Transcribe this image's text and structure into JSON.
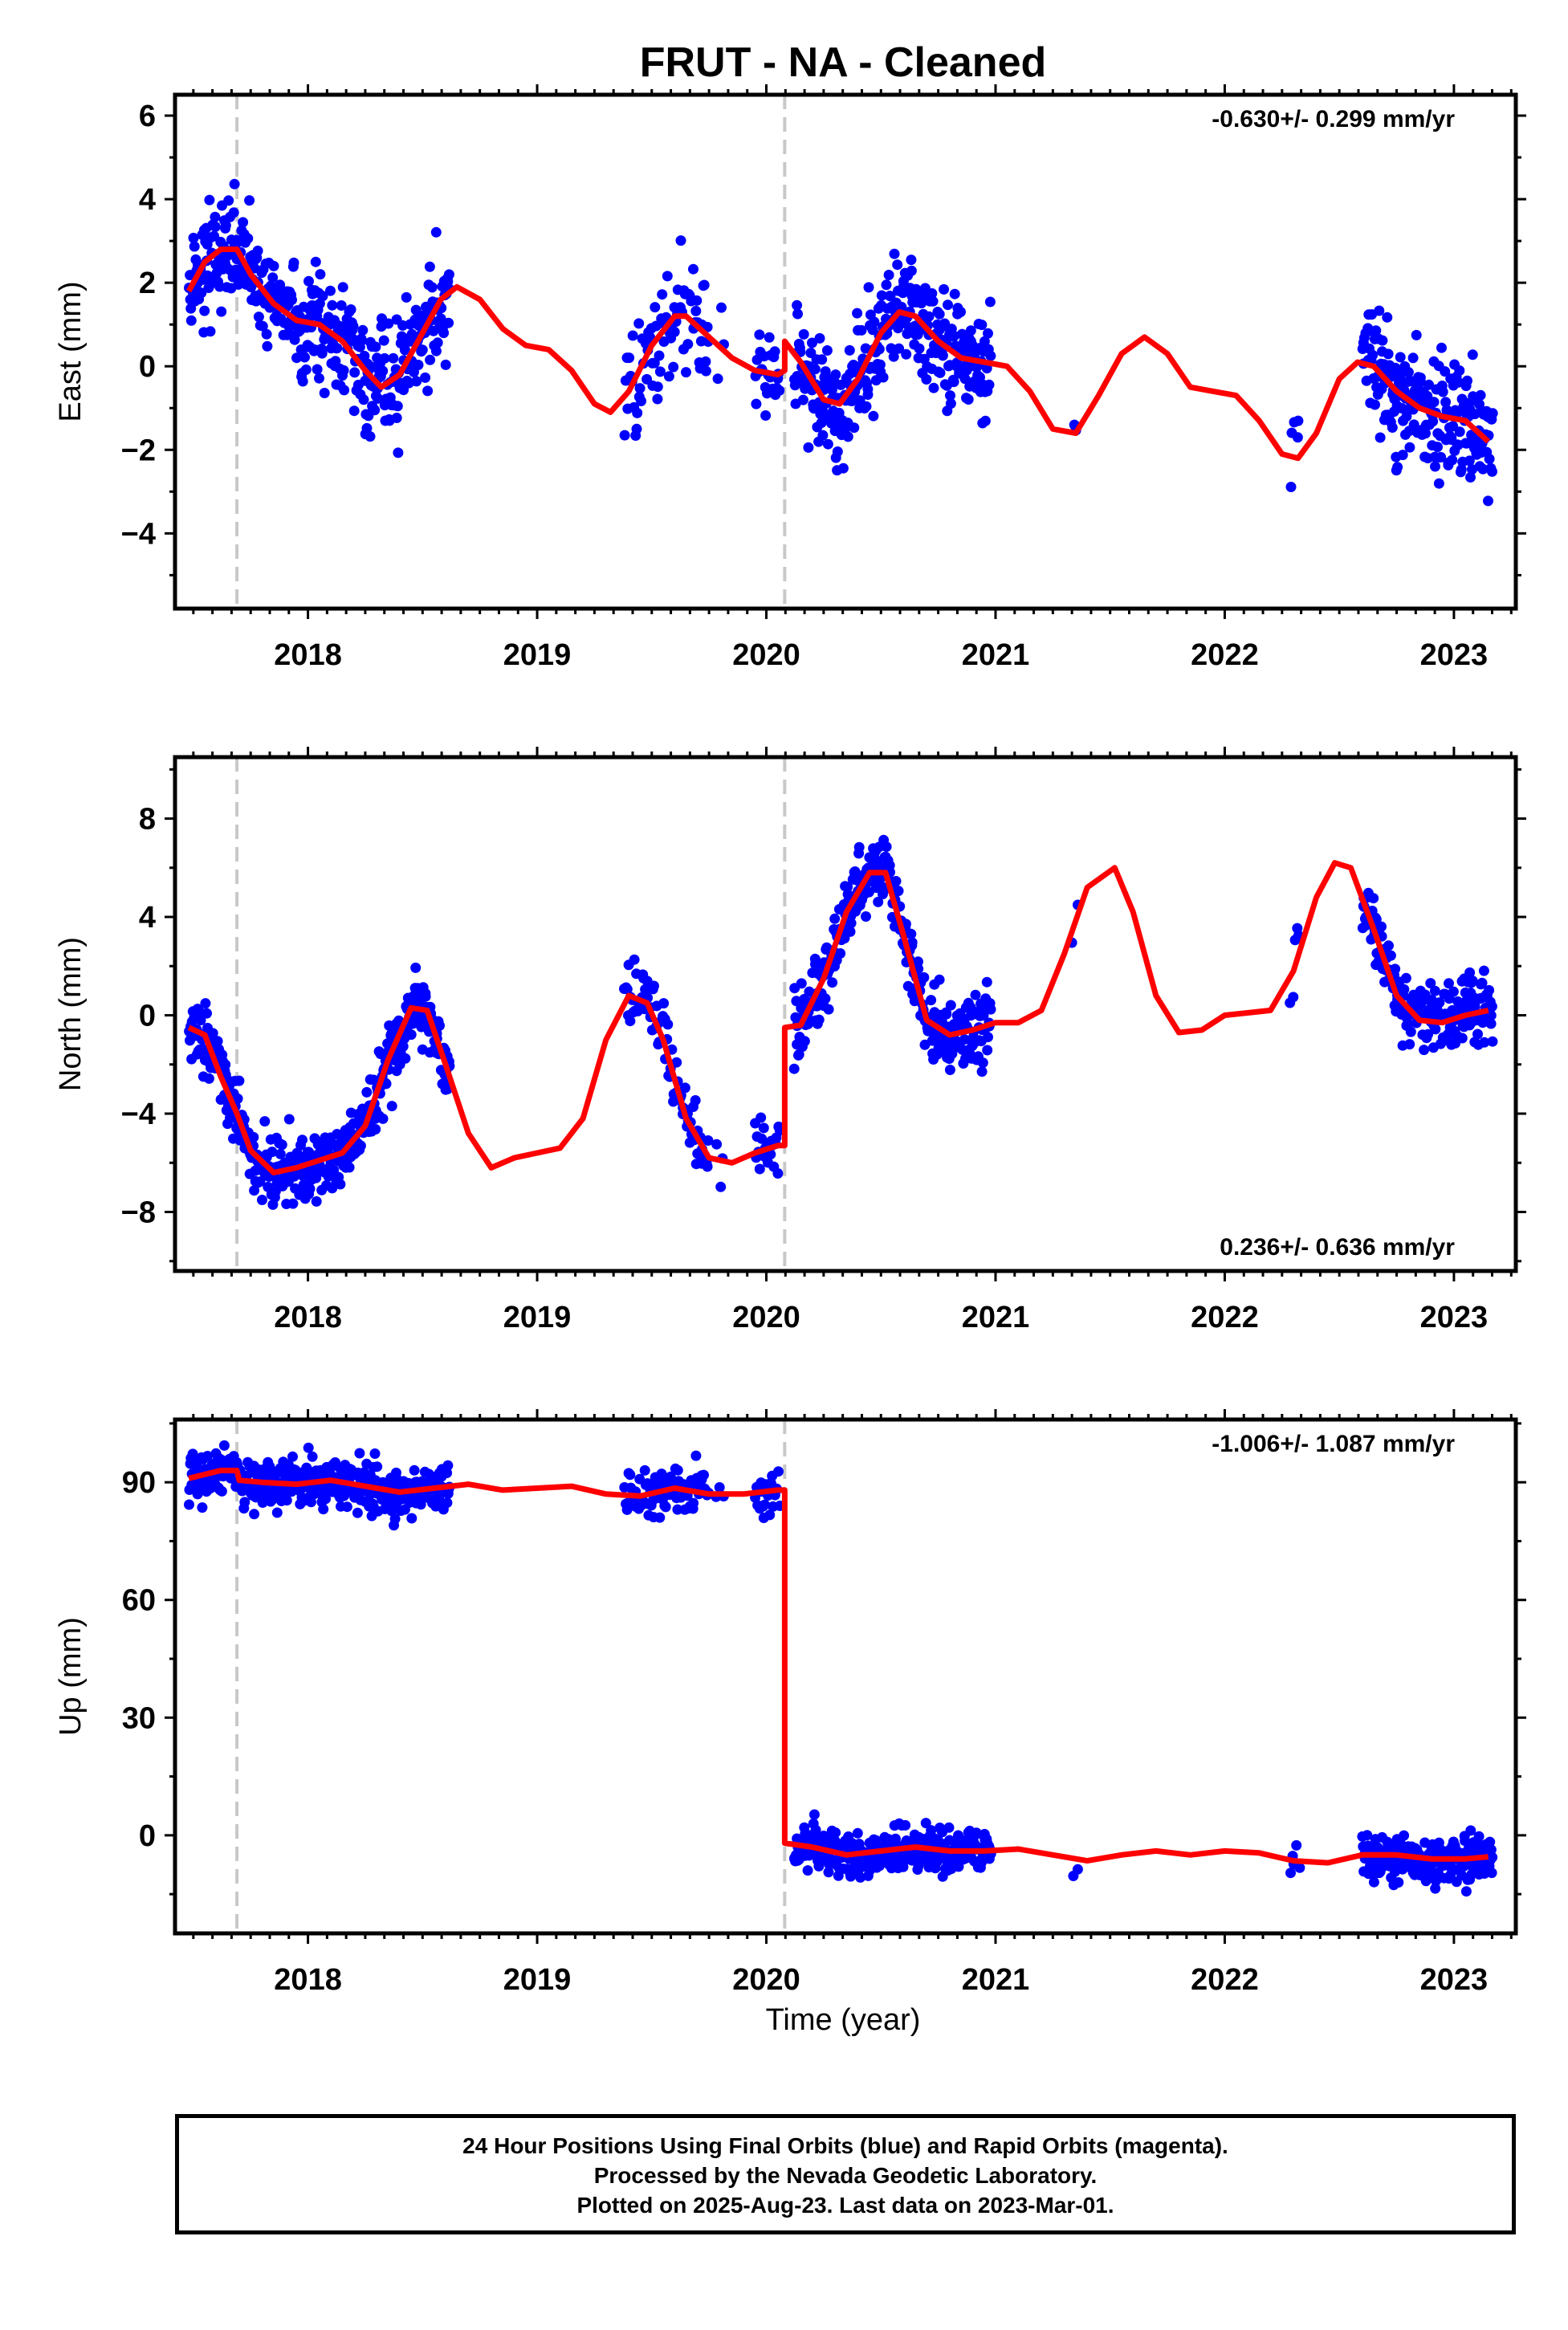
{
  "title": "FRUT  - NA - Cleaned",
  "xlabel": "Time (year)",
  "colors": {
    "final_orbits": "#0000ff",
    "model": "#ff0000",
    "event_lines": "#c8c8c8",
    "axes": "#000000"
  },
  "footer": {
    "line1": "24 Hour Positions Using Final Orbits (blue) and Rapid Orbits (magenta).",
    "line2": "Processed by the Nevada Geodetic Laboratory.",
    "line3": "Plotted on 2025-Aug-23. Last data on 2023-Mar-01."
  },
  "chart_data": [
    {
      "type": "scatter",
      "component": "east",
      "ylabel": "East (mm)",
      "rate_annotation": "-0.630+/- 0.299 mm/yr",
      "rate_position": "top-right",
      "xlim": [
        2017.42,
        2023.27
      ],
      "ylim": [
        -5.8,
        6.5
      ],
      "xticks": [
        2018,
        2019,
        2020,
        2021,
        2022,
        2023
      ],
      "yticks": [
        -4,
        -2,
        0,
        2,
        4,
        6
      ],
      "event_lines": [
        2017.69,
        2020.08
      ],
      "model": {
        "name": "model",
        "x": [
          2017.48,
          2017.55,
          2017.62,
          2017.69,
          2017.75,
          2017.85,
          2017.95,
          2018.05,
          2018.15,
          2018.25,
          2018.32,
          2018.4,
          2018.5,
          2018.58,
          2018.65,
          2018.75,
          2018.85,
          2018.95,
          2019.05,
          2019.15,
          2019.25,
          2019.32,
          2019.4,
          2019.5,
          2019.6,
          2019.65,
          2019.75,
          2019.85,
          2019.95,
          2020.05,
          2020.08,
          2020.08,
          2020.15,
          2020.25,
          2020.32,
          2020.4,
          2020.5,
          2020.58,
          2020.65,
          2020.75,
          2020.85,
          2020.95,
          2021.05,
          2021.15,
          2021.25,
          2021.35,
          2021.45,
          2021.55,
          2021.65,
          2021.75,
          2021.85,
          2021.95,
          2022.05,
          2022.15,
          2022.25,
          2022.32,
          2022.4,
          2022.5,
          2022.58,
          2022.65,
          2022.75,
          2022.85,
          2022.95,
          2023.05,
          2023.15
        ],
        "y": [
          1.8,
          2.5,
          2.8,
          2.8,
          2.2,
          1.5,
          1.1,
          1.0,
          0.6,
          -0.1,
          -0.5,
          -0.2,
          0.8,
          1.6,
          1.9,
          1.6,
          0.9,
          0.5,
          0.4,
          -0.1,
          -0.9,
          -1.1,
          -0.6,
          0.5,
          1.2,
          1.2,
          0.7,
          0.2,
          -0.1,
          -0.2,
          -0.1,
          0.6,
          0.1,
          -0.8,
          -0.9,
          -0.3,
          0.8,
          1.3,
          1.2,
          0.6,
          0.2,
          0.1,
          0.0,
          -0.6,
          -1.5,
          -1.6,
          -0.7,
          0.3,
          0.7,
          0.3,
          -0.5,
          -0.6,
          -0.7,
          -1.3,
          -2.1,
          -2.2,
          -1.6,
          -0.3,
          0.1,
          0.0,
          -0.6,
          -1.0,
          -1.2,
          -1.3,
          -1.8
        ]
      }
    },
    {
      "type": "scatter",
      "component": "north",
      "ylabel": "North (mm)",
      "rate_annotation": "0.236+/- 0.636 mm/yr",
      "rate_position": "bottom-right",
      "xlim": [
        2017.42,
        2023.27
      ],
      "ylim": [
        -10.4,
        10.5
      ],
      "xticks": [
        2018,
        2019,
        2020,
        2021,
        2022,
        2023
      ],
      "yticks": [
        -8,
        -4,
        0,
        4,
        8
      ],
      "event_lines": [
        2017.69,
        2020.08
      ],
      "model": {
        "name": "model",
        "x": [
          2017.48,
          2017.55,
          2017.62,
          2017.69,
          2017.75,
          2017.85,
          2017.95,
          2018.05,
          2018.15,
          2018.25,
          2018.35,
          2018.45,
          2018.52,
          2018.6,
          2018.7,
          2018.8,
          2018.9,
          2019.0,
          2019.1,
          2019.2,
          2019.3,
          2019.4,
          2019.48,
          2019.55,
          2019.65,
          2019.75,
          2019.85,
          2019.95,
          2020.05,
          2020.08,
          2020.08,
          2020.15,
          2020.25,
          2020.35,
          2020.45,
          2020.52,
          2020.6,
          2020.7,
          2020.8,
          2020.9,
          2021.0,
          2021.1,
          2021.2,
          2021.3,
          2021.4,
          2021.52,
          2021.6,
          2021.7,
          2021.8,
          2021.9,
          2022.0,
          2022.1,
          2022.2,
          2022.3,
          2022.4,
          2022.48,
          2022.55,
          2022.65,
          2022.75,
          2022.85,
          2022.95,
          2023.05,
          2023.15
        ],
        "y": [
          -0.5,
          -0.8,
          -2.5,
          -4.0,
          -5.5,
          -6.4,
          -6.2,
          -5.9,
          -5.6,
          -4.5,
          -1.8,
          0.3,
          0.2,
          -2.0,
          -4.8,
          -6.2,
          -5.8,
          -5.6,
          -5.4,
          -4.2,
          -1.0,
          0.8,
          0.5,
          -1.0,
          -4.2,
          -5.8,
          -6.0,
          -5.6,
          -5.3,
          -5.3,
          -0.5,
          -0.4,
          1.5,
          4.2,
          5.8,
          5.8,
          3.2,
          -0.2,
          -0.8,
          -0.6,
          -0.3,
          -0.3,
          0.2,
          2.5,
          5.2,
          6.0,
          4.2,
          0.8,
          -0.7,
          -0.6,
          0.0,
          0.1,
          0.2,
          1.8,
          4.8,
          6.2,
          6.0,
          3.5,
          0.8,
          -0.2,
          -0.3,
          0.0,
          0.2
        ]
      }
    },
    {
      "type": "scatter",
      "component": "up",
      "ylabel": "Up (mm)",
      "rate_annotation": "-1.006+/- 1.087 mm/yr",
      "rate_position": "top-right",
      "xlim": [
        2017.42,
        2023.27
      ],
      "ylim": [
        -25,
        106
      ],
      "xticks": [
        2018,
        2019,
        2020,
        2021,
        2022,
        2023
      ],
      "yticks": [
        0,
        30,
        60,
        90
      ],
      "event_lines": [
        2017.69,
        2020.08
      ],
      "model": {
        "name": "model",
        "x": [
          2017.48,
          2017.55,
          2017.62,
          2017.69,
          2017.7,
          2017.8,
          2017.95,
          2018.1,
          2018.25,
          2018.4,
          2018.55,
          2018.7,
          2018.85,
          2019.0,
          2019.15,
          2019.3,
          2019.45,
          2019.6,
          2019.75,
          2019.9,
          2020.05,
          2020.08,
          2020.08,
          2020.2,
          2020.35,
          2020.5,
          2020.65,
          2020.8,
          2020.95,
          2021.1,
          2021.25,
          2021.4,
          2021.55,
          2021.7,
          2021.85,
          2022.0,
          2022.15,
          2022.3,
          2022.45,
          2022.6,
          2022.75,
          2022.9,
          2023.05,
          2023.15
        ],
        "y": [
          91,
          92,
          93,
          93,
          90.5,
          90,
          89.5,
          90.5,
          89,
          87.5,
          88.5,
          89.5,
          88,
          88.5,
          89,
          87,
          86.5,
          88.5,
          87,
          87,
          88,
          88,
          -2,
          -3,
          -5,
          -4,
          -3,
          -4,
          -4,
          -3.5,
          -5,
          -6.5,
          -5,
          -4,
          -5,
          -4,
          -4.5,
          -6.5,
          -7,
          -5,
          -5,
          -6,
          -6,
          -5.5
        ]
      }
    }
  ]
}
